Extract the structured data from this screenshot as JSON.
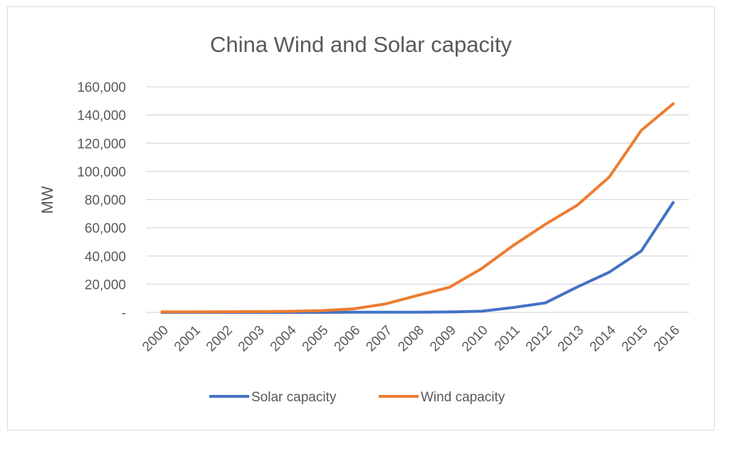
{
  "chart_data": {
    "type": "line",
    "title": "China Wind and Solar capacity",
    "ylabel": "MW",
    "xlabel": "",
    "ylim": [
      0,
      160000
    ],
    "y_ticks": [
      {
        "value": 0,
        "label": "-"
      },
      {
        "value": 20000,
        "label": "20,000"
      },
      {
        "value": 40000,
        "label": "40,000"
      },
      {
        "value": 60000,
        "label": "60,000"
      },
      {
        "value": 80000,
        "label": "80,000"
      },
      {
        "value": 100000,
        "label": "100,000"
      },
      {
        "value": 120000,
        "label": "120,000"
      },
      {
        "value": 140000,
        "label": "140,000"
      },
      {
        "value": 160000,
        "label": "160,000"
      }
    ],
    "grid": true,
    "legend_position": "bottom",
    "categories": [
      "2000",
      "2001",
      "2002",
      "2003",
      "2004",
      "2005",
      "2006",
      "2007",
      "2008",
      "2009",
      "2010",
      "2011",
      "2012",
      "2013",
      "2014",
      "2015",
      "2016"
    ],
    "series": [
      {
        "name": "Solar capacity",
        "color": "#4472c4",
        "values": [
          0,
          0,
          0,
          0,
          0,
          0,
          100,
          100,
          150,
          300,
          800,
          3500,
          6700,
          18000,
          28500,
          43500,
          78000
        ]
      },
      {
        "name": "Wind capacity",
        "color": "#ed7d31",
        "values": [
          350,
          400,
          450,
          550,
          750,
          1250,
          2500,
          6000,
          12000,
          17800,
          31000,
          47500,
          62500,
          76000,
          96000,
          129000,
          148000
        ]
      }
    ]
  }
}
